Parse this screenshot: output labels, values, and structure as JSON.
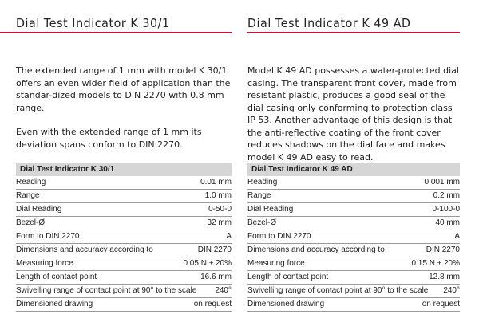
{
  "left": {
    "title": "Dial Test Indicator K 30/1",
    "paragraphs": [
      "The extended range of 1 mm with model K 30/1 offers an even wider field of application than the standar-dized models to DIN 2270 with 0.8 mm range.",
      "Even with the extended range of 1 mm its deviation spans conform to DIN 2270."
    ],
    "table_title": "Dial Test Indicator K 30/1",
    "rows": [
      {
        "label": "Reading",
        "value": "0.01 mm"
      },
      {
        "label": "Range",
        "value": "1.0 mm"
      },
      {
        "label": "Dial Reading",
        "value": "0-50-0"
      },
      {
        "label": "Bezel-Ø",
        "value": "32 mm"
      },
      {
        "label": "Form to DIN 2270",
        "value": "A"
      },
      {
        "label": "Dimensions and accuracy according to",
        "value": "DIN 2270"
      },
      {
        "label": "Measuring force",
        "value": "0.05 N ± 20%"
      },
      {
        "label": "Length of contact point",
        "value": "16.6 mm"
      },
      {
        "label": "Swivelling range of contact point at 90° to the scale",
        "value": "240°"
      },
      {
        "label": "Dimensioned drawing",
        "value": "on request"
      }
    ]
  },
  "right": {
    "title": "Dial Test Indicator K 49 AD",
    "paragraphs": [
      "Model K 49 AD possesses a water-protected dial casing. The transparent front cover, made from resistant plastic, produces a good seal of the dial casing only conforming to protection class IP 53. Another advantage of this design is that the anti-reflective coating of the front cover reduces shadows on the dial face and makes model K 49 AD easy to read."
    ],
    "table_title": "Dial Test Indicator K 49 AD",
    "rows": [
      {
        "label": "Reading",
        "value": "0.001 mm"
      },
      {
        "label": "Range",
        "value": "0.2 mm"
      },
      {
        "label": "Dial Reading",
        "value": "0-100-0"
      },
      {
        "label": "Bezel-Ø",
        "value": "40 mm"
      },
      {
        "label": "Form to DIN 2270",
        "value": "A"
      },
      {
        "label": "Dimensions and accuracy according to",
        "value": "DIN 2270"
      },
      {
        "label": "Measuring force",
        "value": "0.15 N ± 20%"
      },
      {
        "label": "Length of contact point",
        "value": "12.8 mm"
      },
      {
        "label": "Swivelling range of contact point at 90° to the scale",
        "value": "240°"
      },
      {
        "label": "Dimensioned drawing",
        "value": "on request"
      }
    ]
  },
  "colors": {
    "accent_rule": "#c8102e",
    "table_header_bg": "#d6d6d6"
  }
}
